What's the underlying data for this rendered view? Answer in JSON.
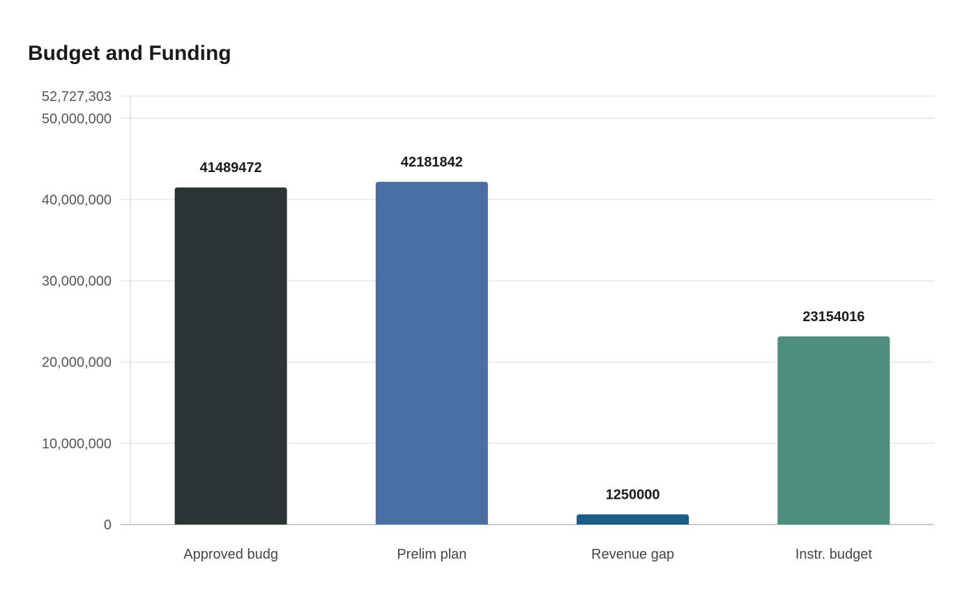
{
  "chart_data": {
    "type": "bar",
    "title": "Budget and Funding",
    "xlabel": "",
    "ylabel": "",
    "categories": [
      "Approved budg",
      "Prelim plan",
      "Revenue gap",
      "Instr. budget"
    ],
    "values": [
      41489472,
      42181842,
      1250000,
      23154016
    ],
    "data_labels": [
      "41489472",
      "42181842",
      "1250000",
      "23154016"
    ],
    "colors": [
      "#2d3436",
      "#4a6fa5",
      "#1a5f8a",
      "#4e8e7c"
    ],
    "ylim": [
      0,
      52727303
    ],
    "yticks": [
      0,
      10000000,
      20000000,
      30000000,
      40000000,
      50000000,
      52727303
    ],
    "ytick_labels": [
      "0",
      "10,000,000",
      "20,000,000",
      "30,000,000",
      "40,000,000",
      "50,000,000",
      "52,727,303"
    ],
    "grid": true,
    "legend": "none"
  }
}
